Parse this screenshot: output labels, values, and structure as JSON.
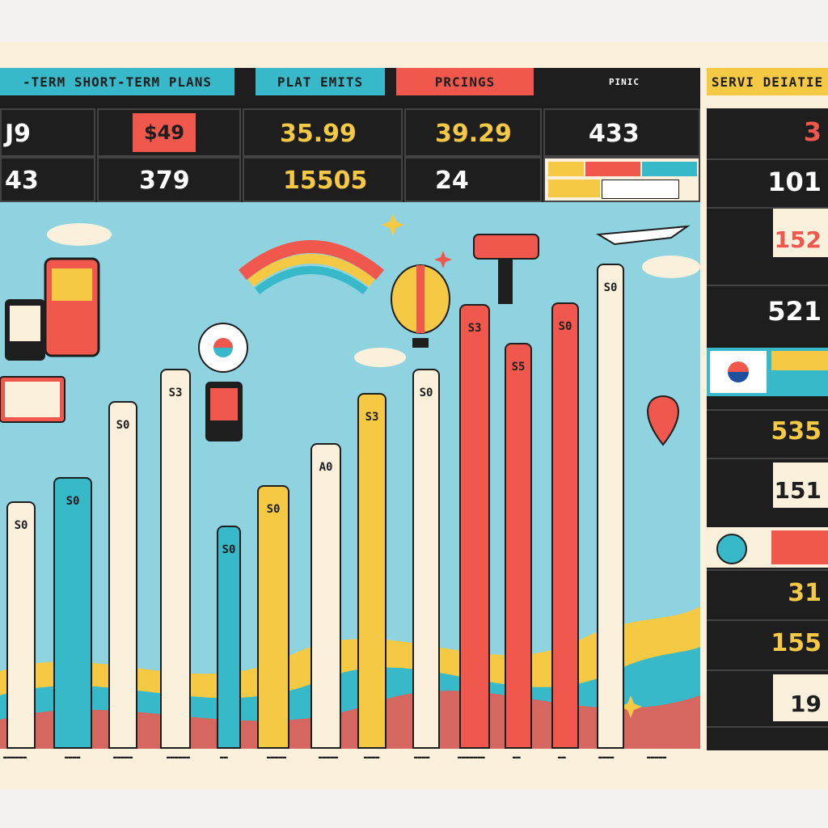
{
  "header": {
    "tabs": [
      "-TERM SHORT-TERM PLANS",
      "PLAT EMITS",
      "PRCINGS",
      "PINIC",
      "SERVI DEIATIE"
    ]
  },
  "price_grid": {
    "row1": [
      "J9",
      "$49",
      "35.99",
      "39.29",
      "433"
    ],
    "row2": [
      "43",
      "379",
      "15505",
      "24"
    ]
  },
  "columns": {
    "labels": [
      "S0",
      "S0",
      "S0",
      "S3",
      "S0",
      "S0",
      "A0",
      "S3",
      "S0",
      "S3",
      "S5",
      "S0",
      "S0"
    ]
  },
  "side_panel": {
    "values": [
      "3",
      "101",
      "152",
      "521",
      "535",
      "151",
      "31",
      "155",
      "19"
    ]
  },
  "colors": {
    "sky": "#8fd3e0",
    "red": "#f1584d",
    "yellow": "#f6c945",
    "teal": "#37b9c9",
    "cream": "#fbf0dc",
    "dark": "#1e1e1f"
  }
}
